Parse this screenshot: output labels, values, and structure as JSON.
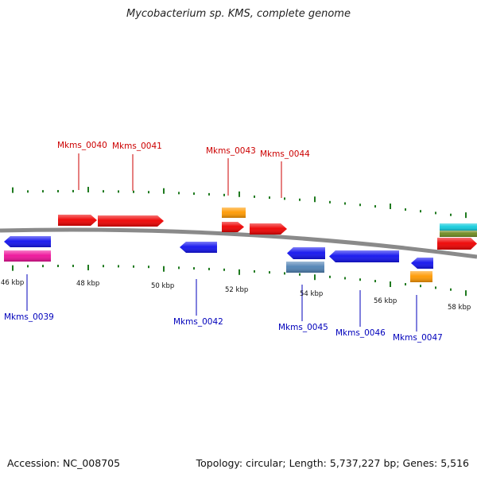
{
  "title": "Mycobacterium sp. KMS, complete genome",
  "footer": {
    "accession": "Accession: NC_008705",
    "summary": "Topology: circular; Length: 5,737,227 bp; Genes: 5,516"
  },
  "colors": {
    "backbone": "#8a8a8a",
    "tick": "#1f7a1f",
    "forward_label": "#cc0000",
    "reverse_label": "#0000bb",
    "red": "#ee0000",
    "blue": "#1212ee",
    "orange": "#ff9900",
    "magenta": "#ee1199",
    "steel": "#4f82b4",
    "cyan": "#11ccdd",
    "olive": "#6f8a1f"
  },
  "scale_labels": [
    "46 kbp",
    "48 kbp",
    "50 kbp",
    "52 kbp",
    "54 kbp",
    "56 kbp",
    "58 kbp"
  ],
  "gene_labels": [
    {
      "name": "Mkms_0040",
      "strand": "forward"
    },
    {
      "name": "Mkms_0041",
      "strand": "forward"
    },
    {
      "name": "Mkms_0043",
      "strand": "forward"
    },
    {
      "name": "Mkms_0044",
      "strand": "forward"
    },
    {
      "name": "Mkms_0039",
      "strand": "reverse"
    },
    {
      "name": "Mkms_0042",
      "strand": "reverse"
    },
    {
      "name": "Mkms_0045",
      "strand": "reverse"
    },
    {
      "name": "Mkms_0046",
      "strand": "reverse"
    },
    {
      "name": "Mkms_0047",
      "strand": "reverse"
    }
  ]
}
